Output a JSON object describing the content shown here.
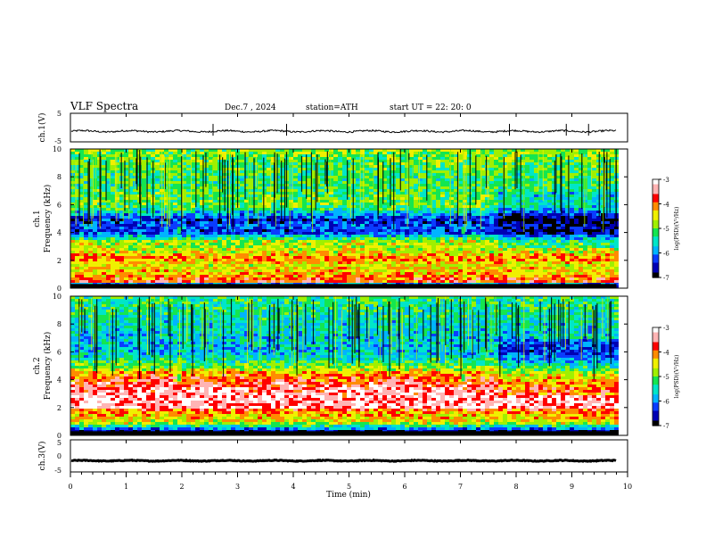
{
  "header": {
    "title": "VLF  Spectra",
    "date": "Dec.7  , 2024",
    "station": "station=ATH",
    "start": "start  UT  =   22: 20: 0"
  },
  "colors": {
    "waveform": "#000000",
    "colormap": [
      "#000000",
      "#0000b4",
      "#0a3cff",
      "#00b4ff",
      "#00e6c8",
      "#14e650",
      "#a0f000",
      "#f0f000",
      "#ff8c00",
      "#ff0000",
      "#ffb4b4",
      "#ffffff"
    ]
  },
  "chart_data": [
    {
      "type": "line",
      "ylabel": "ch.1(V)",
      "ylim": [
        -5,
        5
      ],
      "yticks": [
        "5",
        "-5"
      ],
      "xlim": [
        0,
        9.8
      ],
      "baseline": -1.3,
      "jitter": 0.6,
      "spikes": [
        2.56,
        3.88,
        7.88,
        8.9,
        9.3
      ]
    },
    {
      "type": "heatmap",
      "ylabel": "ch.1\nFrequency (kHz)",
      "ylim": [
        0,
        10
      ],
      "yticks": [
        "0",
        "2",
        "4",
        "6",
        "8",
        "10"
      ],
      "xlim": [
        0,
        9.8
      ],
      "zlim": [
        -7,
        -3
      ],
      "colorbar_label": "log(PSD)(V²/Hz)",
      "colorbar_ticks": [
        "-3",
        "-4",
        "-5",
        "-6",
        "-7"
      ],
      "markers_at_min": [
        1.95,
        7.05
      ],
      "bands_khz": [
        {
          "f": 0.3,
          "level": -7
        },
        {
          "f": 0.6,
          "level": -3.6
        },
        {
          "f": 1.0,
          "level": -4.2
        },
        {
          "f": 1.8,
          "level": -4.5
        },
        {
          "f": 2.2,
          "level": -4.0
        },
        {
          "f": 3.0,
          "level": -4.8
        },
        {
          "f": 3.4,
          "level": -4.6
        },
        {
          "f": 4.1,
          "level": -6.4
        },
        {
          "f": 4.5,
          "level": -6.2
        },
        {
          "f": 5.0,
          "level": -6.5
        },
        {
          "f": 6.0,
          "level": -5.0
        },
        {
          "f": 8.0,
          "level": -5.3
        }
      ]
    },
    {
      "type": "heatmap",
      "ylabel": "ch.2\nFrequency (kHz)",
      "ylim": [
        0,
        10
      ],
      "yticks": [
        "0",
        "2",
        "4",
        "6",
        "8",
        "10"
      ],
      "xlim": [
        0,
        9.8
      ],
      "zlim": [
        -7,
        -3
      ],
      "colorbar_label": "log(PSD)(V²/Hz)",
      "colorbar_ticks": [
        "-3",
        "-4",
        "-5",
        "-6",
        "-7"
      ],
      "markers_at_min": [
        1.95,
        7.05
      ],
      "bands_khz": [
        {
          "f": 0.3,
          "level": -7
        },
        {
          "f": 1.0,
          "level": -4.6
        },
        {
          "f": 1.9,
          "level": -4.0
        },
        {
          "f": 2.1,
          "level": -3.3
        },
        {
          "f": 3.4,
          "level": -3.4
        },
        {
          "f": 4.5,
          "level": -4.1
        },
        {
          "f": 5.0,
          "level": -4.9
        },
        {
          "f": 6.0,
          "level": -5.8
        },
        {
          "f": 8.0,
          "level": -5.6
        }
      ]
    },
    {
      "type": "line",
      "ylabel": "ch.3(V)",
      "ylim": [
        -5,
        5
      ],
      "yticks": [
        "5",
        "0",
        "-5"
      ],
      "xlim": [
        0,
        9.8
      ],
      "baseline": -1.5,
      "jitter": 0.25,
      "spikes": []
    }
  ],
  "xaxis": {
    "label": "Time  (min)",
    "xlim": [
      0,
      10
    ],
    "ticks": [
      "0",
      "1",
      "2",
      "3",
      "4",
      "5",
      "6",
      "7",
      "8",
      "9",
      "10"
    ]
  }
}
